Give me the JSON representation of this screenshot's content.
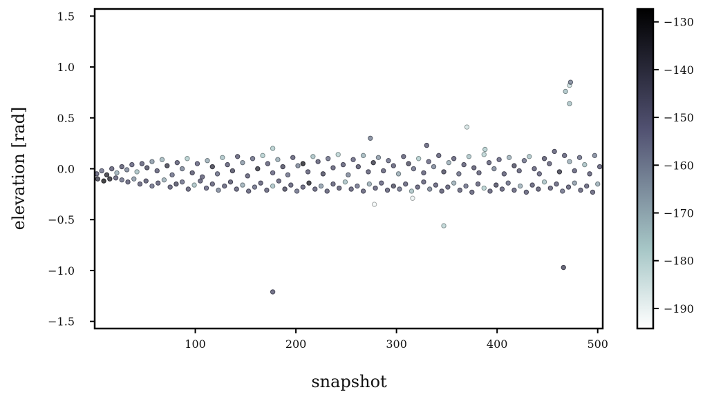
{
  "chart_data": {
    "type": "scatter",
    "title": "",
    "xlabel": "snapshot",
    "ylabel": "elevation [rad]",
    "xlim": [
      0,
      505
    ],
    "ylim": [
      -1.57,
      1.57
    ],
    "xticks": [
      100,
      200,
      300,
      400,
      500
    ],
    "xtick_labels": [
      "100",
      "200",
      "300",
      "400",
      "500"
    ],
    "yticks": [
      1.5,
      1.0,
      0.5,
      0.0,
      -0.5,
      -1.0,
      -1.5
    ],
    "ytick_labels": [
      "1.5",
      "1.0",
      "0.5",
      "0.0",
      "−0.5",
      "−1.0",
      "−1.5"
    ],
    "grid": false,
    "colorbar": {
      "colormap": "bone_r",
      "range": [
        -194.2,
        -127.3
      ],
      "ticks": [
        -130,
        -140,
        -150,
        -160,
        -170,
        -180,
        -190
      ],
      "tick_labels": [
        "−130",
        "−140",
        "−150",
        "−160",
        "−170",
        "−180",
        "−190"
      ]
    },
    "point_fields": [
      "snapshot",
      "elevation",
      "color_value"
    ],
    "points": [
      [
        2,
        -0.05,
        -150
      ],
      [
        7,
        -0.02,
        -155
      ],
      [
        12,
        -0.06,
        -135
      ],
      [
        17,
        0.0,
        -150
      ],
      [
        22,
        -0.04,
        -170
      ],
      [
        27,
        0.02,
        -148
      ],
      [
        32,
        -0.01,
        -160
      ],
      [
        37,
        0.04,
        -152
      ],
      [
        42,
        -0.03,
        -175
      ],
      [
        47,
        0.05,
        -150
      ],
      [
        52,
        0.01,
        -145
      ],
      [
        57,
        0.07,
        -165
      ],
      [
        62,
        -0.02,
        -150
      ],
      [
        67,
        0.09,
        -172
      ],
      [
        72,
        0.03,
        -140
      ],
      [
        77,
        -0.06,
        -155
      ],
      [
        82,
        0.06,
        -150
      ],
      [
        87,
        0.0,
        -160
      ],
      [
        92,
        0.1,
        -178
      ],
      [
        97,
        -0.04,
        -148
      ],
      [
        102,
        0.05,
        -152
      ],
      [
        107,
        -0.08,
        -150
      ],
      [
        112,
        0.08,
        -170
      ],
      [
        117,
        0.02,
        -140
      ],
      [
        122,
        -0.05,
        -155
      ],
      [
        127,
        0.11,
        -175
      ],
      [
        132,
        0.04,
        -150
      ],
      [
        137,
        -0.02,
        -145
      ],
      [
        142,
        0.12,
        -150
      ],
      [
        147,
        0.06,
        -165
      ],
      [
        152,
        -0.07,
        -150
      ],
      [
        157,
        0.1,
        -155
      ],
      [
        162,
        0.0,
        -138
      ],
      [
        167,
        0.13,
        -178
      ],
      [
        172,
        0.05,
        -150
      ],
      [
        177,
        -0.04,
        -152
      ],
      [
        182,
        0.09,
        -170
      ],
      [
        187,
        0.02,
        -145
      ],
      [
        192,
        -0.06,
        -155
      ],
      [
        197,
        0.11,
        -150
      ],
      [
        202,
        0.03,
        -160
      ],
      [
        207,
        0.05,
        -132
      ],
      [
        212,
        -0.03,
        -150
      ],
      [
        217,
        0.12,
        -175
      ],
      [
        222,
        0.07,
        -150
      ],
      [
        227,
        -0.05,
        -145
      ],
      [
        232,
        0.1,
        -155
      ],
      [
        237,
        0.01,
        -150
      ],
      [
        242,
        0.14,
        -180
      ],
      [
        247,
        0.04,
        -150
      ],
      [
        252,
        -0.06,
        -160
      ],
      [
        257,
        0.09,
        -152
      ],
      [
        262,
        0.02,
        -148
      ],
      [
        267,
        0.13,
        -172
      ],
      [
        272,
        -0.03,
        -150
      ],
      [
        277,
        0.06,
        -140
      ],
      [
        282,
        0.11,
        -165
      ],
      [
        287,
        -0.02,
        -150
      ],
      [
        292,
        0.08,
        -155
      ],
      [
        297,
        0.03,
        -150
      ],
      [
        302,
        -0.05,
        -170
      ],
      [
        307,
        0.12,
        -150
      ],
      [
        312,
        0.05,
        -145
      ],
      [
        317,
        0.0,
        -155
      ],
      [
        322,
        0.1,
        -178
      ],
      [
        327,
        -0.04,
        -150
      ],
      [
        332,
        0.07,
        -152
      ],
      [
        337,
        0.02,
        -160
      ],
      [
        342,
        0.13,
        -150
      ],
      [
        347,
        -0.03,
        -145
      ],
      [
        352,
        0.06,
        -170
      ],
      [
        357,
        0.1,
        -150
      ],
      [
        362,
        -0.05,
        -155
      ],
      [
        367,
        0.04,
        -150
      ],
      [
        372,
        0.12,
        -175
      ],
      [
        377,
        0.01,
        -148
      ],
      [
        382,
        -0.04,
        -150
      ],
      [
        387,
        0.14,
        -180
      ],
      [
        392,
        0.06,
        -150
      ],
      [
        397,
        0.0,
        -160
      ],
      [
        402,
        0.09,
        -152
      ],
      [
        407,
        -0.05,
        -150
      ],
      [
        412,
        0.11,
        -170
      ],
      [
        417,
        0.03,
        -145
      ],
      [
        422,
        -0.02,
        -150
      ],
      [
        427,
        0.08,
        -155
      ],
      [
        432,
        0.12,
        -175
      ],
      [
        437,
        0.0,
        -150
      ],
      [
        442,
        -0.05,
        -152
      ],
      [
        447,
        0.1,
        -148
      ],
      [
        452,
        0.05,
        -150
      ],
      [
        457,
        0.17,
        -150
      ],
      [
        462,
        -0.03,
        -140
      ],
      [
        467,
        0.13,
        -150
      ],
      [
        472,
        0.07,
        -170
      ],
      [
        477,
        -0.02,
        -150
      ],
      [
        482,
        0.11,
        -155
      ],
      [
        487,
        0.04,
        -175
      ],
      [
        492,
        -0.05,
        -150
      ],
      [
        497,
        0.13,
        -160
      ],
      [
        502,
        0.02,
        -150
      ],
      [
        3,
        -0.1,
        -140
      ],
      [
        9,
        -0.12,
        -130
      ],
      [
        15,
        -0.1,
        -135
      ],
      [
        21,
        -0.09,
        -150
      ],
      [
        27,
        -0.11,
        -155
      ],
      [
        33,
        -0.13,
        -150
      ],
      [
        39,
        -0.1,
        -165
      ],
      [
        45,
        -0.15,
        -150
      ],
      [
        51,
        -0.12,
        -148
      ],
      [
        57,
        -0.17,
        -155
      ],
      [
        63,
        -0.14,
        -150
      ],
      [
        69,
        -0.11,
        -170
      ],
      [
        75,
        -0.18,
        -150
      ],
      [
        81,
        -0.15,
        -145
      ],
      [
        87,
        -0.13,
        -155
      ],
      [
        93,
        -0.2,
        -150
      ],
      [
        99,
        -0.16,
        -175
      ],
      [
        105,
        -0.12,
        -150
      ],
      [
        111,
        -0.19,
        -152
      ],
      [
        117,
        -0.15,
        -150
      ],
      [
        123,
        -0.21,
        -160
      ],
      [
        129,
        -0.17,
        -150
      ],
      [
        135,
        -0.13,
        -148
      ],
      [
        141,
        -0.2,
        -150
      ],
      [
        147,
        -0.16,
        -170
      ],
      [
        153,
        -0.22,
        -150
      ],
      [
        159,
        -0.18,
        -155
      ],
      [
        165,
        -0.14,
        -150
      ],
      [
        171,
        -0.21,
        -150
      ],
      [
        177,
        -0.17,
        -175
      ],
      [
        183,
        -0.12,
        -150
      ],
      [
        189,
        -0.2,
        -145
      ],
      [
        195,
        -0.16,
        -150
      ],
      [
        201,
        -0.22,
        -155
      ],
      [
        207,
        -0.18,
        -150
      ],
      [
        213,
        -0.14,
        -135
      ],
      [
        219,
        -0.2,
        -150
      ],
      [
        225,
        -0.17,
        -165
      ],
      [
        231,
        -0.22,
        -150
      ],
      [
        237,
        -0.15,
        -150
      ],
      [
        243,
        -0.19,
        -148
      ],
      [
        249,
        -0.13,
        -175
      ],
      [
        255,
        -0.2,
        -150
      ],
      [
        261,
        -0.17,
        -155
      ],
      [
        267,
        -0.22,
        -150
      ],
      [
        273,
        -0.15,
        -170
      ],
      [
        279,
        -0.19,
        -150
      ],
      [
        285,
        -0.14,
        -152
      ],
      [
        291,
        -0.21,
        -150
      ],
      [
        297,
        -0.17,
        -145
      ],
      [
        303,
        -0.2,
        -155
      ],
      [
        309,
        -0.15,
        -150
      ],
      [
        315,
        -0.22,
        -175
      ],
      [
        321,
        -0.18,
        -150
      ],
      [
        327,
        -0.13,
        -150
      ],
      [
        333,
        -0.2,
        -160
      ],
      [
        339,
        -0.16,
        -150
      ],
      [
        345,
        -0.22,
        -148
      ],
      [
        351,
        -0.18,
        -150
      ],
      [
        357,
        -0.14,
        -170
      ],
      [
        363,
        -0.21,
        -150
      ],
      [
        369,
        -0.17,
        -155
      ],
      [
        375,
        -0.23,
        -150
      ],
      [
        381,
        -0.15,
        -150
      ],
      [
        387,
        -0.19,
        -178
      ],
      [
        393,
        -0.22,
        -150
      ],
      [
        399,
        -0.16,
        -145
      ],
      [
        405,
        -0.2,
        -150
      ],
      [
        411,
        -0.14,
        -155
      ],
      [
        417,
        -0.21,
        -150
      ],
      [
        423,
        -0.17,
        -170
      ],
      [
        429,
        -0.23,
        -150
      ],
      [
        435,
        -0.16,
        -150
      ],
      [
        441,
        -0.2,
        -148
      ],
      [
        447,
        -0.13,
        -175
      ],
      [
        453,
        -0.19,
        -150
      ],
      [
        459,
        -0.15,
        -150
      ],
      [
        465,
        -0.22,
        -155
      ],
      [
        471,
        -0.18,
        -150
      ],
      [
        477,
        -0.14,
        -165
      ],
      [
        483,
        -0.21,
        -150
      ],
      [
        489,
        -0.17,
        -150
      ],
      [
        495,
        -0.23,
        -150
      ],
      [
        500,
        -0.15,
        -170
      ],
      [
        177,
        0.2,
        -178
      ],
      [
        274,
        0.3,
        -160
      ],
      [
        370,
        0.41,
        -185
      ],
      [
        347,
        -0.56,
        -180
      ],
      [
        316,
        -0.29,
        -190
      ],
      [
        278,
        -0.35,
        -192
      ],
      [
        177,
        -1.21,
        -150
      ],
      [
        466,
        -0.97,
        -145
      ],
      [
        468,
        0.76,
        -175
      ],
      [
        472,
        0.82,
        -183
      ],
      [
        473,
        0.85,
        -160
      ],
      [
        472,
        0.64,
        -175
      ],
      [
        330,
        0.23,
        -150
      ],
      [
        388,
        0.19,
        -178
      ]
    ]
  }
}
